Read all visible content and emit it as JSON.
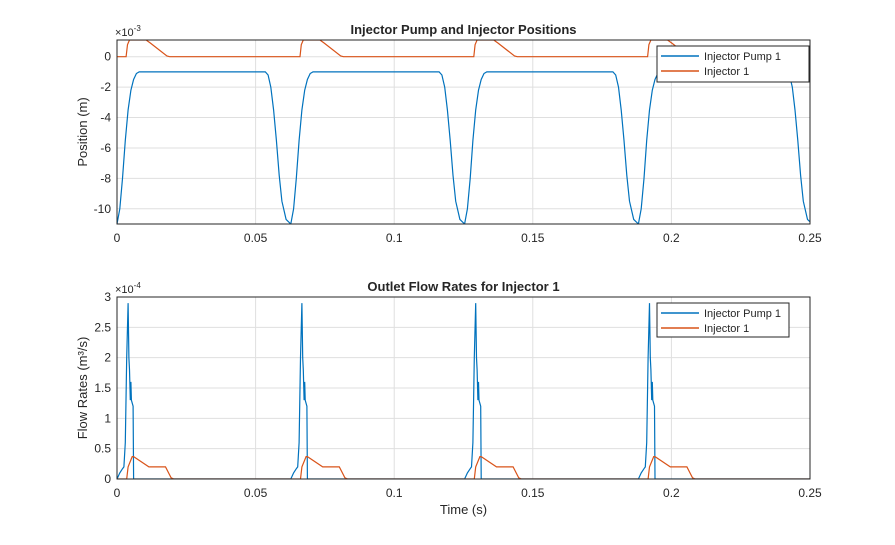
{
  "chart_data": [
    {
      "type": "line",
      "title": "Injector Pump and Injector Positions",
      "xlabel": "",
      "ylabel": "Position (m)",
      "exponent_label": "×10",
      "exponent": "-3",
      "xlim": [
        0,
        0.25
      ],
      "ylim": [
        -11,
        1.1
      ],
      "xticks": [
        0,
        0.05,
        0.1,
        0.15,
        0.2,
        0.25
      ],
      "xtick_labels": [
        "0",
        "0.05",
        "0.1",
        "0.15",
        "0.2",
        "0.25"
      ],
      "yticks": [
        0,
        -2,
        -4,
        -6,
        -8,
        -10
      ],
      "ytick_labels": [
        "0",
        "-2",
        "-4",
        "-6",
        "-8",
        "-10"
      ],
      "grid": true,
      "legend_position": "top-right",
      "period": 0.0627,
      "series": [
        {
          "name": "Injector Pump 1",
          "color": "#0072BD",
          "cycle_t": [
            0,
            0.001,
            0.002,
            0.003,
            0.004,
            0.005,
            0.006,
            0.007,
            0.008,
            0.0535,
            0.0545,
            0.0555,
            0.0565,
            0.0575,
            0.0585,
            0.0595,
            0.061,
            0.0627
          ],
          "cycle_y": [
            -11,
            -10,
            -8,
            -5.5,
            -3.5,
            -2.2,
            -1.5,
            -1.1,
            -1,
            -1,
            -1.2,
            -2,
            -3.5,
            -5.5,
            -7.8,
            -9.5,
            -10.7,
            -11
          ]
        },
        {
          "name": "Injector 1",
          "color": "#D95319",
          "cycle_t": [
            0,
            0.0033,
            0.0038,
            0.0045,
            0.0105,
            0.012,
            0.018,
            0.019,
            0.0627
          ],
          "cycle_y": [
            0,
            0,
            0.8,
            1.1,
            1.1,
            0.9,
            0.05,
            0,
            0
          ]
        }
      ]
    },
    {
      "type": "line",
      "title": "Outlet Flow Rates for Injector 1",
      "xlabel": "Time (s)",
      "ylabel": "Flow  Rates  (m³/s)",
      "exponent_label": "×10",
      "exponent": "-4",
      "xlim": [
        0,
        0.25
      ],
      "ylim": [
        0,
        3
      ],
      "xticks": [
        0,
        0.05,
        0.1,
        0.15,
        0.2,
        0.25
      ],
      "xtick_labels": [
        "0",
        "0.05",
        "0.1",
        "0.15",
        "0.2",
        "0.25"
      ],
      "yticks": [
        0,
        0.5,
        1,
        1.5,
        2,
        2.5,
        3
      ],
      "ytick_labels": [
        "0",
        "0.5",
        "1",
        "1.5",
        "2",
        "2.5",
        "3"
      ],
      "grid": true,
      "legend_position": "top-right",
      "period": 0.0627,
      "series": [
        {
          "name": "Injector Pump 1",
          "color": "#0072BD",
          "cycle_t": [
            0,
            0.001,
            0.002,
            0.0025,
            0.003,
            0.0035,
            0.004,
            0.0043,
            0.0045,
            0.0048,
            0.005,
            0.0052,
            0.0058,
            0.006,
            0.0627
          ],
          "cycle_y": [
            0,
            0.1,
            0.17,
            0.2,
            0.6,
            2.0,
            2.9,
            2.0,
            1.8,
            1.3,
            1.6,
            1.3,
            1.2,
            0,
            0
          ]
        },
        {
          "name": "Injector 1",
          "color": "#D95319",
          "cycle_t": [
            0,
            0.0035,
            0.004,
            0.0055,
            0.006,
            0.0115,
            0.0175,
            0.0195,
            0.0205,
            0.0627
          ],
          "cycle_y": [
            0,
            0,
            0.2,
            0.37,
            0.37,
            0.2,
            0.2,
            0.02,
            0,
            0
          ]
        }
      ]
    }
  ]
}
